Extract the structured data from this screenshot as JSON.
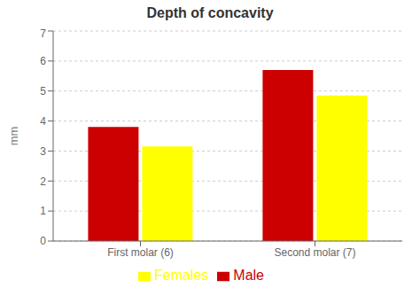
{
  "chart_data": {
    "type": "bar",
    "title": "Depth of concavity",
    "categories": [
      "First molar (6)",
      "Second molar (7)"
    ],
    "series": [
      {
        "name": "Male",
        "color": "#CC0000",
        "values": [
          3.8,
          5.7
        ]
      },
      {
        "name": "Females",
        "color": "#FFFF00",
        "values": [
          3.15,
          4.85
        ]
      }
    ],
    "ylabel": "mm",
    "ylim": [
      0,
      7
    ],
    "yticks": [
      0,
      1,
      2,
      3,
      4,
      5,
      6,
      7
    ],
    "grid": true,
    "legend": "bottom"
  }
}
